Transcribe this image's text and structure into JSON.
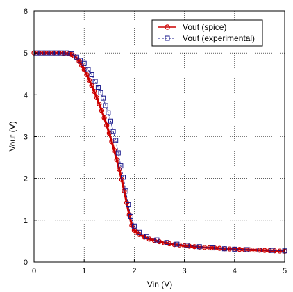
{
  "chart_data": {
    "type": "line",
    "xlabel": "Vin  (V)",
    "ylabel": "Vout  (V)",
    "xlim": [
      0,
      5
    ],
    "ylim": [
      0,
      6
    ],
    "xticks": [
      0,
      1,
      2,
      3,
      4,
      5
    ],
    "yticks": [
      0,
      1,
      2,
      3,
      4,
      5,
      6
    ],
    "grid": true,
    "legend_position": "top-right",
    "series": [
      {
        "name": "Vout (spice)",
        "color": "#cc0000",
        "marker": "circle",
        "x": [
          0,
          0.1,
          0.2,
          0.3,
          0.4,
          0.5,
          0.6,
          0.7,
          0.75,
          0.8,
          0.85,
          0.9,
          0.95,
          1.0,
          1.05,
          1.1,
          1.15,
          1.2,
          1.25,
          1.3,
          1.35,
          1.4,
          1.45,
          1.5,
          1.55,
          1.6,
          1.65,
          1.7,
          1.75,
          1.8,
          1.85,
          1.9,
          1.95,
          2.0,
          2.05,
          2.1,
          2.2,
          2.3,
          2.4,
          2.5,
          2.6,
          2.7,
          2.8,
          2.9,
          3.0,
          3.1,
          3.2,
          3.3,
          3.4,
          3.5,
          3.6,
          3.7,
          3.8,
          3.9,
          4.0,
          4.1,
          4.2,
          4.3,
          4.4,
          4.5,
          4.6,
          4.7,
          4.8,
          4.9,
          5.0
        ],
        "y": [
          5.0,
          5.0,
          5.0,
          5.0,
          5.0,
          5.0,
          4.99,
          4.98,
          4.96,
          4.93,
          4.88,
          4.8,
          4.7,
          4.6,
          4.48,
          4.35,
          4.22,
          4.08,
          3.93,
          3.78,
          3.62,
          3.45,
          3.27,
          3.08,
          2.88,
          2.67,
          2.45,
          2.22,
          1.97,
          1.7,
          1.42,
          1.13,
          0.88,
          0.76,
          0.71,
          0.66,
          0.6,
          0.55,
          0.52,
          0.49,
          0.46,
          0.44,
          0.42,
          0.41,
          0.39,
          0.38,
          0.37,
          0.36,
          0.35,
          0.345,
          0.34,
          0.33,
          0.32,
          0.315,
          0.31,
          0.305,
          0.3,
          0.295,
          0.29,
          0.285,
          0.28,
          0.275,
          0.27,
          0.265,
          0.26
        ]
      },
      {
        "name": "Vout (experimental)",
        "color": "#1a1a8c",
        "marker": "square",
        "x": [
          0.05,
          0.15,
          0.25,
          0.35,
          0.45,
          0.55,
          0.65,
          0.75,
          0.85,
          0.92,
          1.0,
          1.08,
          1.15,
          1.22,
          1.28,
          1.33,
          1.38,
          1.43,
          1.48,
          1.53,
          1.58,
          1.63,
          1.68,
          1.73,
          1.78,
          1.83,
          1.88,
          1.93,
          2.0,
          2.1,
          2.25,
          2.45,
          2.65,
          2.85,
          3.05,
          3.3,
          3.55,
          3.8,
          4.0,
          4.25,
          4.5,
          4.75,
          5.0
        ],
        "y": [
          5.0,
          5.0,
          5.0,
          5.0,
          5.0,
          5.0,
          5.0,
          4.98,
          4.9,
          4.82,
          4.75,
          4.6,
          4.48,
          4.32,
          4.18,
          4.05,
          3.92,
          3.74,
          3.57,
          3.37,
          3.12,
          2.91,
          2.61,
          2.3,
          2.03,
          1.7,
          1.37,
          1.09,
          0.86,
          0.71,
          0.61,
          0.53,
          0.47,
          0.43,
          0.4,
          0.37,
          0.34,
          0.32,
          0.31,
          0.3,
          0.29,
          0.28,
          0.27
        ]
      }
    ]
  }
}
